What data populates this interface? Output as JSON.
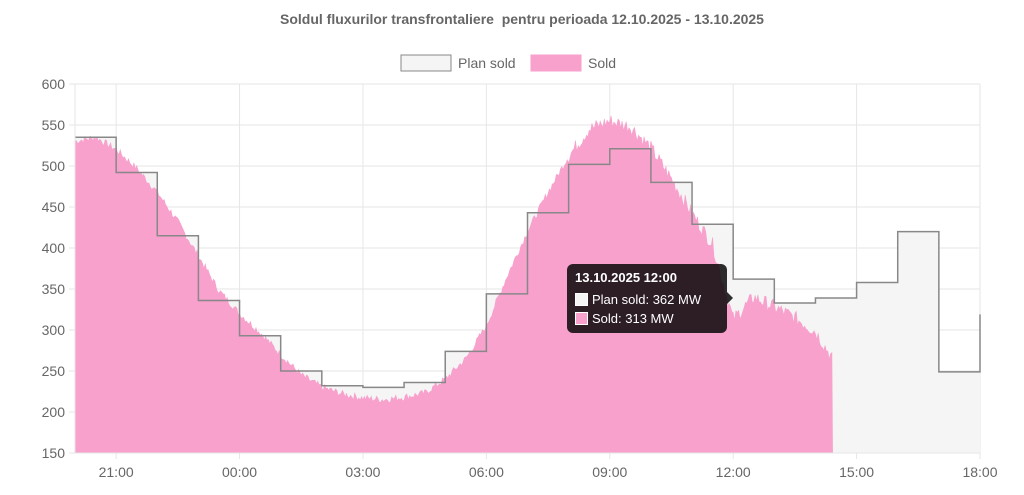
{
  "chart_data": {
    "type": "area",
    "title": "Soldul fluxurilor transfrontaliere  pentru perioada 12.10.2025 - 13.10.2025",
    "x_unit": "hours since 20:00 on 12.10.2025",
    "x_ticks": [
      "21:00",
      "00:00",
      "03:00",
      "06:00",
      "09:00",
      "12:00",
      "15:00",
      "18:00"
    ],
    "xlim": [
      "12.10.2025 20:00",
      "13.10.2025 18:00"
    ],
    "ylim": [
      150,
      600
    ],
    "y_ticks": [
      "150",
      "200",
      "250",
      "300",
      "350",
      "400",
      "450",
      "500",
      "550",
      "600"
    ],
    "grid": true,
    "legend_position": "top",
    "series": [
      {
        "name": "Plan sold",
        "kind": "step-line",
        "color": "#888888",
        "fill": "#f5f5f5",
        "points": [
          [
            "20:00",
            535
          ],
          [
            "21:00",
            492
          ],
          [
            "22:00",
            415
          ],
          [
            "23:00",
            336
          ],
          [
            "00:00",
            293
          ],
          [
            "01:00",
            250
          ],
          [
            "02:00",
            232
          ],
          [
            "03:00",
            230
          ],
          [
            "04:00",
            236
          ],
          [
            "05:00",
            274
          ],
          [
            "06:00",
            344
          ],
          [
            "07:00",
            443
          ],
          [
            "08:00",
            502
          ],
          [
            "09:00",
            521
          ],
          [
            "10:00",
            480
          ],
          [
            "11:00",
            429
          ],
          [
            "12:00",
            362
          ],
          [
            "13:00",
            333
          ],
          [
            "14:00",
            339
          ],
          [
            "15:00",
            358
          ],
          [
            "16:00",
            420
          ],
          [
            "17:00",
            249
          ],
          [
            "18:00",
            319
          ]
        ]
      },
      {
        "name": "Sold",
        "kind": "area",
        "color": "#f7a1cc",
        "end": "14:25",
        "points": [
          [
            "20:00",
            530
          ],
          [
            "20:30",
            535
          ],
          [
            "21:00",
            520
          ],
          [
            "21:30",
            497
          ],
          [
            "22:00",
            468
          ],
          [
            "22:30",
            432
          ],
          [
            "23:00",
            390
          ],
          [
            "23:30",
            348
          ],
          [
            "00:00",
            320
          ],
          [
            "00:30",
            297
          ],
          [
            "01:00",
            270
          ],
          [
            "01:30",
            245
          ],
          [
            "02:00",
            230
          ],
          [
            "02:30",
            222
          ],
          [
            "03:00",
            217
          ],
          [
            "03:30",
            215
          ],
          [
            "04:00",
            218
          ],
          [
            "04:30",
            223
          ],
          [
            "05:00",
            240
          ],
          [
            "05:30",
            265
          ],
          [
            "06:00",
            305
          ],
          [
            "06:30",
            365
          ],
          [
            "07:00",
            420
          ],
          [
            "07:30",
            468
          ],
          [
            "08:00",
            512
          ],
          [
            "08:30",
            545
          ],
          [
            "09:00",
            555
          ],
          [
            "09:30",
            548
          ],
          [
            "10:00",
            522
          ],
          [
            "10:30",
            484
          ],
          [
            "11:00",
            442
          ],
          [
            "11:30",
            404
          ],
          [
            "12:00",
            313
          ],
          [
            "12:30",
            340
          ],
          [
            "13:00",
            328
          ],
          [
            "13:30",
            315
          ],
          [
            "14:00",
            298
          ],
          [
            "14:25",
            265
          ]
        ]
      }
    ],
    "tooltip": {
      "title": "13.10.2025 12:00",
      "rows": [
        {
          "label": "Plan sold: 362 MW",
          "color": "#f5f5f5"
        },
        {
          "label": "Sold: 313 MW",
          "color": "#f7a1cc"
        }
      ]
    }
  }
}
